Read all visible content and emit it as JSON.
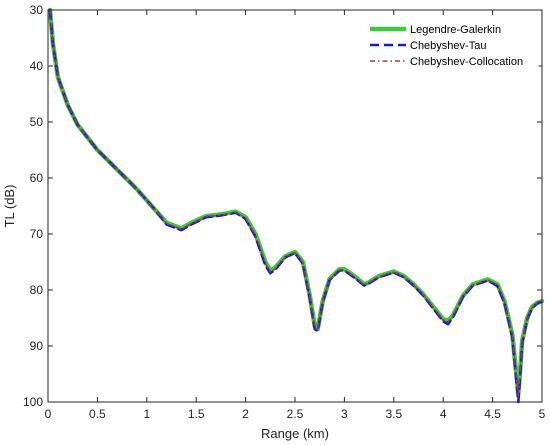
{
  "chart_data": {
    "type": "line",
    "xlabel": "Range (km)",
    "ylabel": "TL (dB)",
    "xlim": [
      0,
      5
    ],
    "ylim": [
      30,
      100
    ],
    "y_reversed": true,
    "grid": false,
    "legend_position": "top-right",
    "xticks": [
      "0",
      "0.5",
      "1",
      "1.5",
      "2",
      "2.5",
      "3",
      "3.5",
      "4",
      "4.5",
      "5"
    ],
    "yticks": [
      "30",
      "40",
      "50",
      "60",
      "70",
      "80",
      "90",
      "100"
    ],
    "x": [
      0.02,
      0.05,
      0.1,
      0.2,
      0.3,
      0.5,
      0.7,
      0.9,
      1.0,
      1.1,
      1.2,
      1.35,
      1.45,
      1.6,
      1.75,
      1.9,
      2.0,
      2.1,
      2.2,
      2.25,
      2.3,
      2.4,
      2.5,
      2.58,
      2.65,
      2.7,
      2.73,
      2.78,
      2.85,
      2.95,
      3.0,
      3.1,
      3.2,
      3.25,
      3.35,
      3.5,
      3.6,
      3.7,
      3.8,
      3.9,
      4.0,
      4.05,
      4.1,
      4.2,
      4.3,
      4.45,
      4.55,
      4.62,
      4.7,
      4.74,
      4.76,
      4.78,
      4.8,
      4.85,
      4.9,
      4.95,
      5.0
    ],
    "series": [
      {
        "name": "Legendre-Galerkin",
        "color": "#3ec93e",
        "style": "solid-thick",
        "values": [
          30,
          36,
          42,
          47,
          50.5,
          55,
          58.5,
          62,
          64,
          66,
          68,
          69,
          68,
          66.8,
          66.5,
          66,
          67,
          70,
          75,
          76.5,
          76,
          74,
          73.2,
          75,
          81,
          86.5,
          87,
          82,
          78,
          76.3,
          76.3,
          77.5,
          79,
          78.6,
          77.5,
          76.7,
          77.5,
          79,
          80.8,
          83,
          85.2,
          85.5,
          84.5,
          81,
          79,
          78.1,
          79,
          82,
          88,
          95,
          98.5,
          94,
          89,
          85,
          83,
          82.3,
          82
        ]
      },
      {
        "name": "Chebyshev-Tau",
        "color": "#1a1ad6",
        "style": "dashed",
        "values": [
          30,
          36,
          42,
          47,
          50.5,
          55,
          58.5,
          62,
          64,
          66,
          68.3,
          69.3,
          68.3,
          67,
          66.7,
          66.2,
          67.3,
          70.5,
          75.6,
          77,
          76.4,
          74.2,
          73.4,
          75.3,
          81.5,
          87,
          87.3,
          82.2,
          78.2,
          76.5,
          76.5,
          77.8,
          79.2,
          78.8,
          77.7,
          76.9,
          77.7,
          79.2,
          81,
          83.3,
          85.6,
          86.1,
          84.8,
          81.2,
          79.2,
          78.3,
          79.3,
          82.3,
          88.5,
          96,
          100,
          95,
          89.5,
          85.2,
          83.2,
          82.4,
          82
        ]
      },
      {
        "name": "Chebyshev-Collocation",
        "color": "#a0402a",
        "style": "dashdot",
        "values": [
          30,
          36,
          42,
          47,
          50.5,
          55,
          58.5,
          62,
          64,
          66,
          68.1,
          69.1,
          68.1,
          66.9,
          66.6,
          66.1,
          67.1,
          70.2,
          75.2,
          76.7,
          76.2,
          74.1,
          73.3,
          75.1,
          81.2,
          86.7,
          87.1,
          82.1,
          78.1,
          76.4,
          76.4,
          77.6,
          79.1,
          78.7,
          77.6,
          76.8,
          77.6,
          79.1,
          80.9,
          83.1,
          85.3,
          85.7,
          84.6,
          81.1,
          79.1,
          78.2,
          79.1,
          82.1,
          88.2,
          95.5,
          99,
          94.5,
          89.2,
          85.1,
          83.1,
          82.3,
          82
        ]
      }
    ]
  }
}
